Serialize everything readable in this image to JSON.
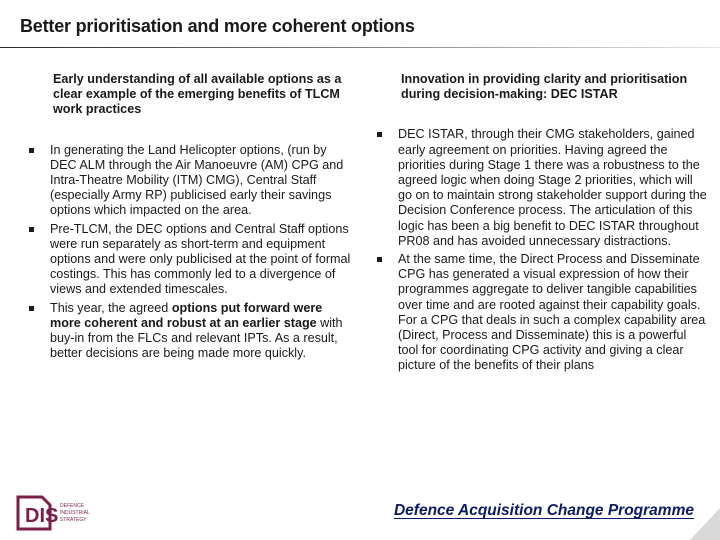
{
  "title": "Better prioritisation and more coherent options",
  "left": {
    "heading": "Early understanding of all available options as a clear example of the emerging benefits of TLCM work practices",
    "bullets": [
      {
        "text": "In generating the Land Helicopter options, (run by DEC ALM through the Air Manoeuvre (AM) CPG and Intra-Theatre Mobility (ITM) CMG), Central Staff (especially Army RP) publicised early their savings options which impacted on the area."
      },
      {
        "text": "Pre-TLCM, the DEC options and Central Staff options were run separately as short-term and equipment options and were only publicised at the point of formal costings. This has commonly led to a divergence of views and extended timescales."
      },
      {
        "pre": "This year, the agreed ",
        "bold": "options put forward were more coherent and robust at an earlier stage",
        "post": " with buy-in from the FLCs and relevant IPTs. As a result, better decisions are being made more quickly."
      }
    ]
  },
  "right": {
    "heading": "Innovation in providing clarity and prioritisation during decision-making: DEC ISTAR",
    "bullets": [
      {
        "text": "DEC ISTAR, through their CMG stakeholders, gained early agreement on priorities. Having agreed the priorities during Stage 1 there was a robustness to the agreed logic when doing Stage 2 priorities, which will go on to maintain strong stakeholder support during the Decision Conference process. The articulation of this logic has been a big benefit to DEC ISTAR throughout PR08 and has avoided unnecessary distractions."
      },
      {
        "text": "At the same time, the Direct Process and Disseminate CPG has generated a visual expression of how their programmes aggregate to deliver tangible capabilities over time and are rooted against their capability goals. For a CPG that deals in such a complex capability area (Direct, Process and Disseminate) this is a powerful tool for coordinating CPG activity and giving a clear picture of the benefits of their plans"
      }
    ]
  },
  "footer": {
    "logo_text": "DIS",
    "logo_small": [
      "DEFENCE",
      "INDUSTRIAL",
      "STRATEGY"
    ],
    "programme": "Defence Acquisition Change Programme",
    "colors": {
      "logo": "#7a1f4a",
      "footer_text": "#0a1a66"
    }
  }
}
